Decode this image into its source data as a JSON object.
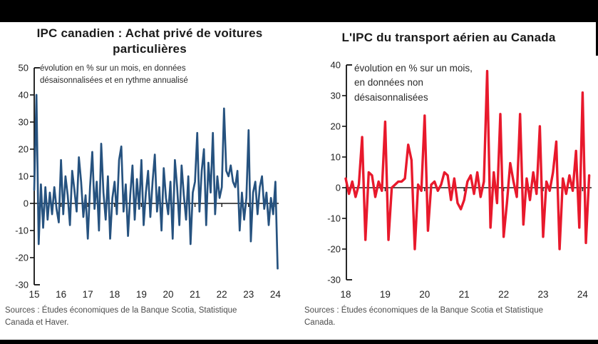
{
  "page": {
    "background": "#ffffff",
    "top_bar_color": "#000000",
    "bottom_bar_color": "#000000"
  },
  "charts": [
    {
      "title": "IPC canadien : Achat privé de voitures particulières",
      "annotation": "évolution en % sur un mois, en données désaisonnalisées et en rythme annualisé",
      "source": "Sources : Études économiques de la Banque Scotia, Statistique Canada et Haver.",
      "line_color": "#26527f",
      "chart_data": {
        "type": "line",
        "title": "IPC canadien : Achat privé de voitures particulières",
        "ylabel": "évolution en % sur un mois, en données désaisonnalisées et en rythme annualisé",
        "frequency": "monthly",
        "x_range": [
          "2015-01",
          "2024-02"
        ],
        "x_start_year": 2015,
        "x_tick_labels": [
          "15",
          "16",
          "17",
          "18",
          "19",
          "20",
          "21",
          "22",
          "23",
          "24"
        ],
        "y_ticks": [
          50,
          40,
          30,
          20,
          10,
          0,
          -10,
          -20,
          -30
        ],
        "ylim": [
          -30,
          50
        ],
        "grid": false,
        "legend": false,
        "values": [
          5,
          40,
          -15,
          7,
          -9,
          6,
          -6,
          4,
          -4,
          6,
          -2,
          -7,
          16,
          -4,
          10,
          3,
          -8,
          12,
          5,
          -3,
          17,
          8,
          -5,
          3,
          -13,
          6,
          19,
          -2,
          8,
          -10,
          22,
          4,
          -6,
          10,
          -13,
          2,
          8,
          -4,
          16,
          21,
          -3,
          7,
          -12,
          3,
          14,
          -6,
          9,
          -2,
          16,
          -8,
          4,
          12,
          -5,
          8,
          18,
          -3,
          6,
          -10,
          13,
          2,
          -4,
          8,
          -13,
          16,
          6,
          -8,
          14,
          3,
          -6,
          10,
          -15,
          4,
          8,
          26,
          -3,
          12,
          20,
          -8,
          15,
          4,
          26,
          -4,
          10,
          2,
          6,
          35,
          12,
          10,
          14,
          8,
          6,
          12,
          -10,
          4,
          -6,
          2,
          27,
          -14,
          4,
          8,
          -4,
          6,
          10,
          -2,
          4,
          -8,
          2,
          -4,
          8,
          -24
        ]
      }
    },
    {
      "title": "L'IPC du transport aérien au Canada",
      "annotation": "évolution en % sur un mois, en données non désaisonnalisées",
      "source": "Sources : Études économiques de la Banque Scotia et Statistique Canada.",
      "line_color": "#e8192c",
      "chart_data": {
        "type": "line",
        "title": "L'IPC du transport aérien au Canada",
        "ylabel": "évolution en % sur un mois, en données non désaisonnalisées",
        "frequency": "monthly",
        "x_range": [
          "2018-01",
          "2024-03"
        ],
        "x_start_year": 2018,
        "x_tick_labels": [
          "18",
          "19",
          "20",
          "21",
          "22",
          "23",
          "24"
        ],
        "y_ticks": [
          40,
          30,
          20,
          10,
          0,
          -10,
          -20,
          -30
        ],
        "ylim": [
          -30,
          40
        ],
        "grid": false,
        "legend": false,
        "values": [
          3,
          -2,
          2,
          -3,
          1,
          16.5,
          -17,
          5,
          4,
          -3,
          2,
          -1,
          21.5,
          -17,
          0,
          1,
          2,
          2,
          3,
          14,
          9,
          -20,
          1,
          -1,
          23.5,
          -14,
          1,
          2,
          -1,
          1,
          5,
          4,
          -4,
          3,
          -5,
          -7,
          -4,
          2,
          4,
          -2,
          5,
          -3,
          2,
          38,
          -13,
          5,
          -5,
          24,
          -16,
          -5,
          8,
          2,
          -3,
          24,
          -12,
          3,
          -4,
          5,
          -2,
          20,
          -16,
          2,
          -1,
          5,
          15,
          -20,
          3,
          -2,
          4,
          -1,
          12,
          -13,
          31,
          -18,
          4
        ]
      }
    }
  ]
}
